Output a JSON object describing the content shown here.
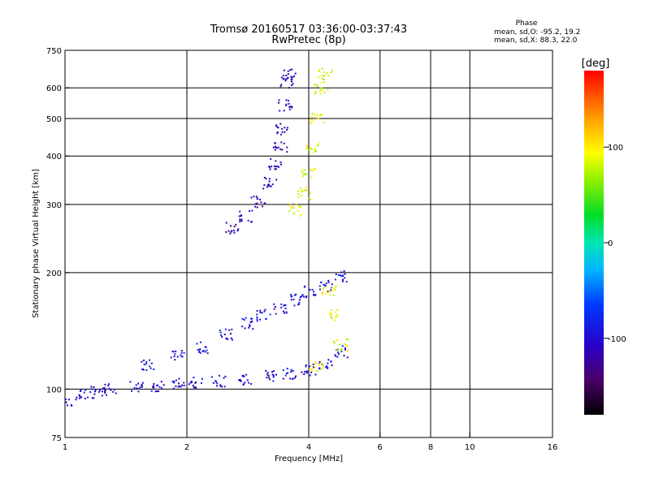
{
  "chart_data": {
    "type": "scatter",
    "title": "Tromsø 20160517 03:36:00-03:37:43",
    "subtitle": "RwPretec (8p)",
    "xlabel": "Frequency [MHz]",
    "ylabel": "Stationary phase Virtual Height [km]",
    "x_scale": "log",
    "y_scale": "log",
    "xlim": [
      1,
      16
    ],
    "ylim": [
      75,
      750
    ],
    "x_ticks": [
      1,
      2,
      4,
      6,
      8,
      10,
      16
    ],
    "y_ticks": [
      75,
      100,
      200,
      300,
      400,
      500,
      600,
      750
    ],
    "x_gridlines": [
      2,
      4,
      6,
      8,
      10
    ],
    "y_gridlines": [
      100,
      200,
      300,
      400,
      500,
      600
    ],
    "grid": true,
    "phase_info": {
      "heading": "Phase",
      "line_o": "mean, sd,O: -95.2, 19.2",
      "line_x": "mean, sd,X:  88.3, 22.0"
    },
    "colorbar": {
      "label": "[deg]",
      "range": [
        -180,
        180
      ],
      "ticks": [
        "100",
        "0",
        "-100"
      ],
      "tick_values": [
        100,
        0,
        -100
      ]
    },
    "series": [
      {
        "trace": "O-mode low-band trace (E / F1 region)",
        "phase_mean": -100,
        "points": [
          [
            1.0,
            93
          ],
          [
            1.1,
            97
          ],
          [
            1.2,
            98
          ],
          [
            1.3,
            100
          ],
          [
            1.5,
            101
          ],
          [
            1.7,
            102
          ],
          [
            1.9,
            103
          ],
          [
            2.1,
            104
          ],
          [
            2.4,
            105
          ],
          [
            2.8,
            106
          ],
          [
            3.2,
            108
          ],
          [
            3.6,
            110
          ],
          [
            4.0,
            112
          ],
          [
            4.4,
            116
          ],
          [
            4.8,
            125
          ]
        ]
      },
      {
        "trace": "O-mode F1 cusp trace",
        "phase_mean": -95,
        "points": [
          [
            1.6,
            115
          ],
          [
            1.9,
            122
          ],
          [
            2.2,
            128
          ],
          [
            2.5,
            138
          ],
          [
            2.8,
            148
          ],
          [
            3.1,
            155
          ],
          [
            3.4,
            162
          ],
          [
            3.7,
            170
          ],
          [
            4.0,
            178
          ],
          [
            4.4,
            185
          ],
          [
            4.8,
            195
          ]
        ]
      },
      {
        "trace": "O-mode F2 trace",
        "phase_mean": -110,
        "points": [
          [
            2.6,
            260
          ],
          [
            2.8,
            280
          ],
          [
            3.0,
            305
          ],
          [
            3.2,
            340
          ],
          [
            3.3,
            380
          ],
          [
            3.4,
            420
          ],
          [
            3.45,
            470
          ],
          [
            3.5,
            540
          ],
          [
            3.55,
            620
          ],
          [
            3.6,
            650
          ]
        ]
      },
      {
        "trace": "X-mode trace",
        "phase_mean": 90,
        "points": [
          [
            3.7,
            290
          ],
          [
            3.9,
            320
          ],
          [
            4.0,
            360
          ],
          [
            4.1,
            420
          ],
          [
            4.2,
            500
          ],
          [
            4.3,
            600
          ],
          [
            4.4,
            650
          ],
          [
            4.5,
            180
          ],
          [
            4.6,
            155
          ],
          [
            4.8,
            130
          ],
          [
            4.2,
            115
          ]
        ]
      }
    ]
  }
}
